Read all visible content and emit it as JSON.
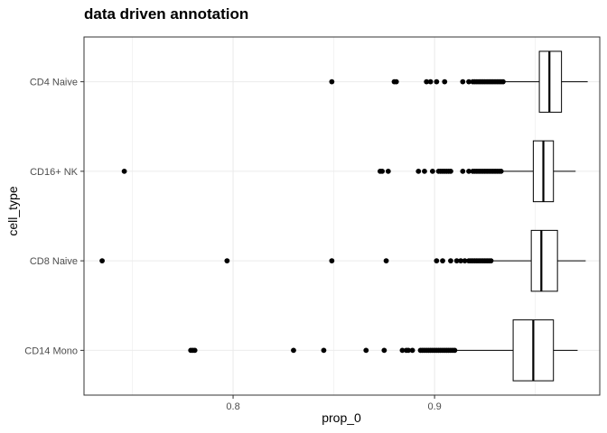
{
  "chart_data": {
    "type": "boxplot",
    "title": "data driven annotation",
    "xlabel": "prop_0",
    "ylabel": "cell_type",
    "xlim": [
      0.726,
      0.982
    ],
    "xticks": [
      0.8,
      0.9
    ],
    "xtick_labels": [
      "0.8",
      "0.9"
    ],
    "grid": true,
    "categories": [
      "CD4 Naive",
      "CD16+ NK",
      "CD8 Naive",
      "CD14 Mono"
    ],
    "boxes": [
      {
        "category": "CD4 Naive",
        "whisker_low": 0.935,
        "q1": 0.952,
        "median": 0.957,
        "q3": 0.963,
        "whisker_high": 0.976,
        "outliers": [
          0.849,
          0.88,
          0.881,
          0.896,
          0.898,
          0.901,
          0.905,
          0.914,
          0.917,
          0.919,
          0.92,
          0.921,
          0.922,
          0.923,
          0.924,
          0.925,
          0.926,
          0.927,
          0.928,
          0.929,
          0.93,
          0.931,
          0.932,
          0.933,
          0.934
        ]
      },
      {
        "category": "CD16+ NK",
        "whisker_low": 0.934,
        "q1": 0.949,
        "median": 0.954,
        "q3": 0.959,
        "whisker_high": 0.97,
        "outliers": [
          0.746,
          0.873,
          0.874,
          0.877,
          0.892,
          0.895,
          0.899,
          0.902,
          0.903,
          0.904,
          0.905,
          0.906,
          0.907,
          0.908,
          0.914,
          0.917,
          0.919,
          0.92,
          0.921,
          0.922,
          0.923,
          0.924,
          0.925,
          0.926,
          0.927,
          0.928,
          0.929,
          0.93,
          0.931,
          0.932,
          0.933
        ]
      },
      {
        "category": "CD8 Naive",
        "whisker_low": 0.929,
        "q1": 0.948,
        "median": 0.953,
        "q3": 0.961,
        "whisker_high": 0.975,
        "outliers": [
          0.735,
          0.797,
          0.849,
          0.876,
          0.901,
          0.904,
          0.908,
          0.911,
          0.913,
          0.915,
          0.917,
          0.918,
          0.919,
          0.92,
          0.921,
          0.922,
          0.923,
          0.924,
          0.925,
          0.926,
          0.927,
          0.928
        ]
      },
      {
        "category": "CD14 Mono",
        "whisker_low": 0.911,
        "q1": 0.939,
        "median": 0.949,
        "q3": 0.959,
        "whisker_high": 0.971,
        "outliers": [
          0.779,
          0.78,
          0.781,
          0.83,
          0.845,
          0.866,
          0.875,
          0.884,
          0.886,
          0.887,
          0.889,
          0.893,
          0.894,
          0.895,
          0.896,
          0.897,
          0.898,
          0.899,
          0.9,
          0.901,
          0.902,
          0.903,
          0.904,
          0.905,
          0.906,
          0.907,
          0.908,
          0.909,
          0.91
        ]
      }
    ]
  }
}
